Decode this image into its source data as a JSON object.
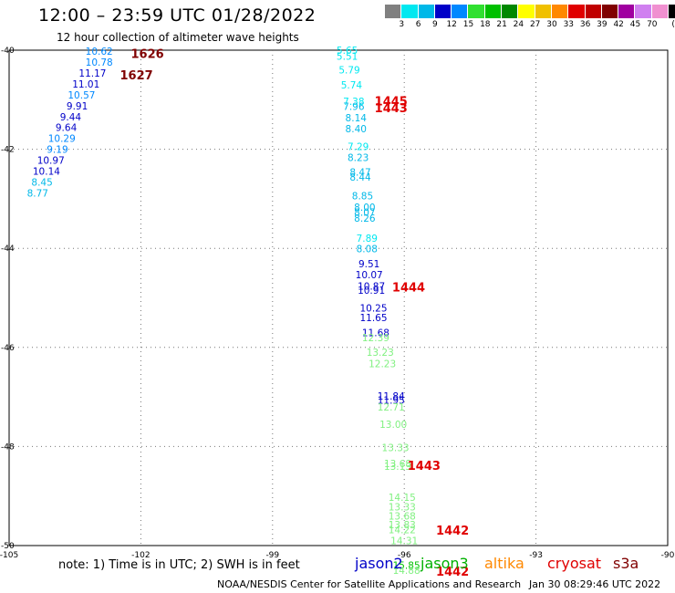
{
  "header": {
    "title": "12:00 – 23:59 UTC 01/28/2022",
    "subtitle": "12 hour collection of altimeter wave heights"
  },
  "colorbar": {
    "unit": "(ft)",
    "ticks": [
      "3",
      "6",
      "9",
      "12",
      "15",
      "18",
      "21",
      "24",
      "27",
      "30",
      "33",
      "36",
      "39",
      "42",
      "45",
      "70"
    ],
    "colors": [
      "#808080",
      "#00e8f0",
      "#00b8e8",
      "#0000c8",
      "#0088ff",
      "#30e030",
      "#00c000",
      "#008800",
      "#ffff00",
      "#f0c000",
      "#ff8800",
      "#e00000",
      "#c00000",
      "#800000",
      "#a000a0",
      "#d080f0",
      "#f090d0",
      "#000000"
    ]
  },
  "axes": {
    "lon_ticks": [
      {
        "value": -105,
        "label": "-105"
      },
      {
        "value": -102,
        "label": "-102"
      },
      {
        "value": -99,
        "label": "-99"
      },
      {
        "value": -96,
        "label": "-96"
      },
      {
        "value": -93,
        "label": "-93"
      },
      {
        "value": -90,
        "label": "-90"
      }
    ],
    "lat_ticks": [
      {
        "value": -40,
        "label": "-40"
      },
      {
        "value": -42,
        "label": "-42"
      },
      {
        "value": -44,
        "label": "-44"
      },
      {
        "value": -46,
        "label": "-46"
      },
      {
        "value": -48,
        "label": "-48"
      },
      {
        "value": -50,
        "label": "-50"
      }
    ],
    "lon_range": [
      -105,
      -90
    ],
    "lat_range": [
      -50,
      -40
    ]
  },
  "observations": [
    {
      "lon": -102.95,
      "lat": -40.02,
      "text": "10.62",
      "color": "#0088ff"
    },
    {
      "lon": -102.95,
      "lat": -40.24,
      "text": "10.78",
      "color": "#0088ff"
    },
    {
      "lon": -103.1,
      "lat": -40.46,
      "text": "11.17",
      "color": "#0000c8"
    },
    {
      "lon": -103.25,
      "lat": -40.68,
      "text": "11.01",
      "color": "#0000c8"
    },
    {
      "lon": -103.35,
      "lat": -40.9,
      "text": "10.57",
      "color": "#0088ff"
    },
    {
      "lon": -103.45,
      "lat": -41.12,
      "text": "9.91",
      "color": "#0000c8"
    },
    {
      "lon": -103.6,
      "lat": -41.34,
      "text": "9.44",
      "color": "#0000c8"
    },
    {
      "lon": -103.7,
      "lat": -41.56,
      "text": "9.64",
      "color": "#0000c8"
    },
    {
      "lon": -103.8,
      "lat": -41.78,
      "text": "10.29",
      "color": "#0088ff"
    },
    {
      "lon": -103.9,
      "lat": -42.0,
      "text": "9.19",
      "color": "#0088ff"
    },
    {
      "lon": -104.05,
      "lat": -42.22,
      "text": "10.97",
      "color": "#0000c8"
    },
    {
      "lon": -104.15,
      "lat": -42.44,
      "text": "10.14",
      "color": "#0000c8"
    },
    {
      "lon": -104.25,
      "lat": -42.66,
      "text": "8.45",
      "color": "#00b8e8"
    },
    {
      "lon": -104.35,
      "lat": -42.88,
      "text": "8.77",
      "color": "#00b8e8"
    },
    {
      "lon": -97.3,
      "lat": -40.0,
      "text": "5.65",
      "color": "#00e8f0"
    },
    {
      "lon": -97.3,
      "lat": -40.12,
      "text": "5.51",
      "color": "#00e8f0"
    },
    {
      "lon": -97.25,
      "lat": -40.4,
      "text": "5.79",
      "color": "#00e8f0"
    },
    {
      "lon": -97.2,
      "lat": -40.7,
      "text": "5.74",
      "color": "#00e8f0"
    },
    {
      "lon": -97.15,
      "lat": -41.03,
      "text": "7.38",
      "color": "#00e8f0"
    },
    {
      "lon": -97.15,
      "lat": -41.13,
      "text": "7.96",
      "color": "#00b8e8"
    },
    {
      "lon": -97.1,
      "lat": -41.36,
      "text": "8.14",
      "color": "#00b8e8"
    },
    {
      "lon": -97.1,
      "lat": -41.58,
      "text": "8.40",
      "color": "#00b8e8"
    },
    {
      "lon": -97.05,
      "lat": -41.94,
      "text": "7.29",
      "color": "#00e8f0"
    },
    {
      "lon": -97.05,
      "lat": -42.16,
      "text": "8.23",
      "color": "#00b8e8"
    },
    {
      "lon": -97.0,
      "lat": -42.46,
      "text": "8.47",
      "color": "#00b8e8"
    },
    {
      "lon": -97.0,
      "lat": -42.56,
      "text": "8.44",
      "color": "#00b8e8"
    },
    {
      "lon": -96.95,
      "lat": -42.94,
      "text": "8.85",
      "color": "#00b8e8"
    },
    {
      "lon": -96.9,
      "lat": -43.17,
      "text": "8.00",
      "color": "#00b8e8"
    },
    {
      "lon": -96.9,
      "lat": -43.27,
      "text": "8.07",
      "color": "#00b8e8"
    },
    {
      "lon": -96.9,
      "lat": -43.39,
      "text": "8.26",
      "color": "#00b8e8"
    },
    {
      "lon": -96.85,
      "lat": -43.79,
      "text": "7.89",
      "color": "#00e8f0"
    },
    {
      "lon": -96.85,
      "lat": -44.01,
      "text": "8.08",
      "color": "#00b8e8"
    },
    {
      "lon": -96.8,
      "lat": -44.31,
      "text": "9.51",
      "color": "#0000c8"
    },
    {
      "lon": -96.8,
      "lat": -44.53,
      "text": "10.07",
      "color": "#0000c8"
    },
    {
      "lon": -96.75,
      "lat": -44.76,
      "text": "10.87",
      "color": "#0000c8"
    },
    {
      "lon": -96.75,
      "lat": -44.84,
      "text": "10.91",
      "color": "#0000c8"
    },
    {
      "lon": -96.7,
      "lat": -45.2,
      "text": "10.25",
      "color": "#0000c8"
    },
    {
      "lon": -96.7,
      "lat": -45.4,
      "text": "11.65",
      "color": "#0000c8"
    },
    {
      "lon": -96.65,
      "lat": -45.7,
      "text": "11.68",
      "color": "#0000c8"
    },
    {
      "lon": -96.65,
      "lat": -45.8,
      "text": "12.39",
      "color": "#80f080"
    },
    {
      "lon": -96.55,
      "lat": -46.1,
      "text": "13.23",
      "color": "#80f080"
    },
    {
      "lon": -96.5,
      "lat": -46.33,
      "text": "12.23",
      "color": "#80f080"
    },
    {
      "lon": -96.3,
      "lat": -46.98,
      "text": "11.84",
      "color": "#0000c8"
    },
    {
      "lon": -96.3,
      "lat": -47.06,
      "text": "11.95",
      "color": "#0000c8"
    },
    {
      "lon": -96.3,
      "lat": -47.2,
      "text": "12.71",
      "color": "#80f080"
    },
    {
      "lon": -96.25,
      "lat": -47.55,
      "text": "13.00",
      "color": "#80f080"
    },
    {
      "lon": -96.2,
      "lat": -48.02,
      "text": "13.33",
      "color": "#80f080"
    },
    {
      "lon": -96.15,
      "lat": -48.34,
      "text": "13.68",
      "color": "#80f080"
    },
    {
      "lon": -96.15,
      "lat": -48.4,
      "text": "13.13",
      "color": "#80f080"
    },
    {
      "lon": -96.05,
      "lat": -49.02,
      "text": "14.15",
      "color": "#80f080"
    },
    {
      "lon": -96.05,
      "lat": -49.22,
      "text": "13.33",
      "color": "#80f080"
    },
    {
      "lon": -96.05,
      "lat": -49.4,
      "text": "13.68",
      "color": "#80f080"
    },
    {
      "lon": -96.05,
      "lat": -49.58,
      "text": "13.83",
      "color": "#80f080"
    },
    {
      "lon": -96.05,
      "lat": -49.68,
      "text": "14.22",
      "color": "#80f080"
    },
    {
      "lon": -96.0,
      "lat": -49.9,
      "text": "14.31",
      "color": "#80f080"
    },
    {
      "lon": -95.95,
      "lat": -50.4,
      "text": "15.85",
      "color": "#00c000"
    },
    {
      "lon": -95.95,
      "lat": -50.5,
      "text": "14.88",
      "color": "#80f080"
    }
  ],
  "pass_times": [
    {
      "lon": -101.85,
      "lat": -40.06,
      "text": "1626",
      "color": "#800000"
    },
    {
      "lon": -102.1,
      "lat": -40.5,
      "text": "1627",
      "color": "#800000"
    },
    {
      "lon": -96.3,
      "lat": -41.02,
      "text": "1445",
      "color": "#e00000"
    },
    {
      "lon": -96.3,
      "lat": -41.16,
      "text": "1443",
      "color": "#e00000"
    },
    {
      "lon": -95.9,
      "lat": -44.78,
      "text": "1444",
      "color": "#e00000"
    },
    {
      "lon": -95.55,
      "lat": -48.38,
      "text": "1443",
      "color": "#e00000"
    },
    {
      "lon": -94.9,
      "lat": -49.69,
      "text": "1442",
      "color": "#e00000"
    },
    {
      "lon": -94.9,
      "lat": -50.52,
      "text": "1442",
      "color": "#e00000"
    }
  ],
  "note": "note:  1) Time is in UTC;  2) SWH is in feet",
  "legend": [
    {
      "label": "jason2",
      "color": "#0000c8"
    },
    {
      "label": "jason3",
      "color": "#00b000"
    },
    {
      "label": "altika",
      "color": "#ff8800"
    },
    {
      "label": "cryosat",
      "color": "#e00000"
    },
    {
      "label": "s3a",
      "color": "#800000"
    }
  ],
  "footer": {
    "credit": "NOAA/NESDIS Center for Satellite Applications and Research",
    "generated": "Jan 30 08:29:46 UTC 2022"
  }
}
